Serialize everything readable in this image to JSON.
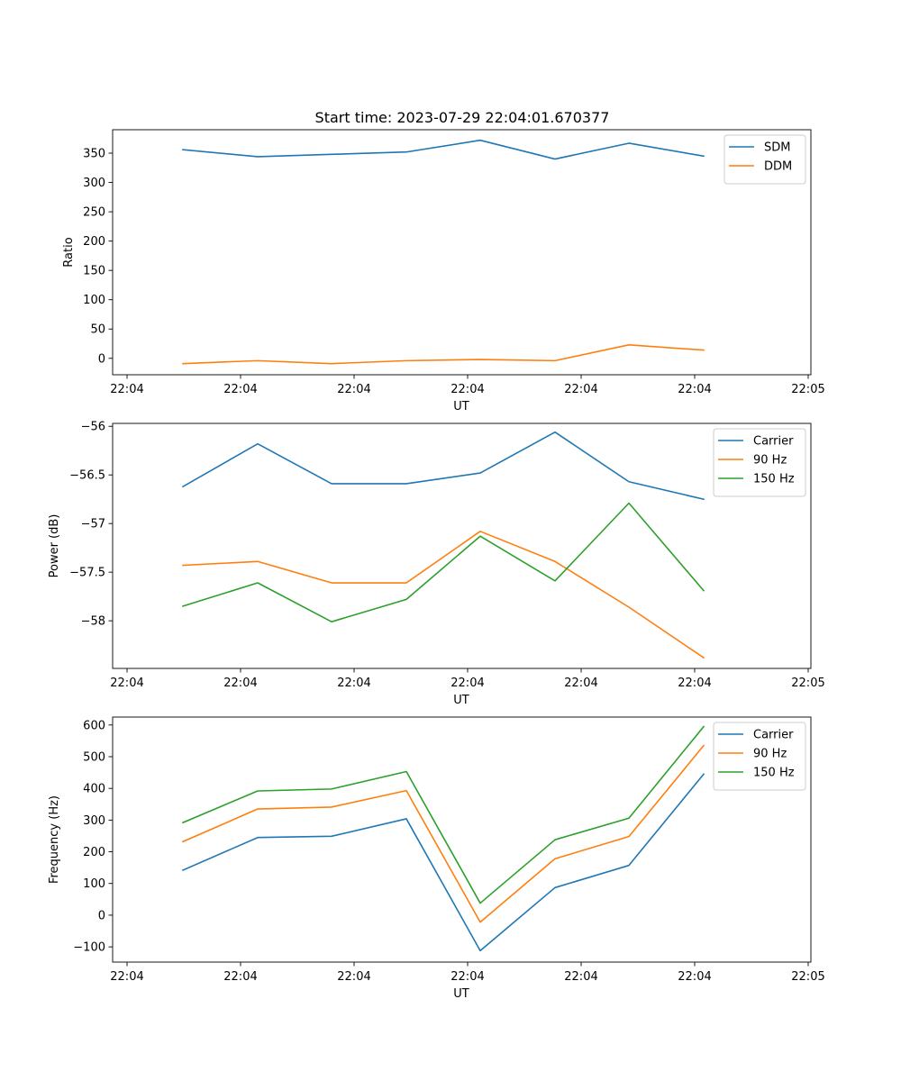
{
  "title": "Start time: 2023-07-29 22:04:01.670377",
  "chart_data": [
    {
      "type": "line",
      "xlabel": "UT",
      "ylabel": "Ratio",
      "xticks": [
        "22:04",
        "22:04",
        "22:04",
        "22:04",
        "22:04",
        "22:04",
        "22:05"
      ],
      "yticks": [
        0,
        50,
        100,
        150,
        200,
        250,
        300,
        350
      ],
      "ylim": [
        -28,
        390
      ],
      "legend": "top-right",
      "series": [
        {
          "name": "SDM",
          "color": "#1f77b4",
          "values": [
            356,
            344,
            348,
            352,
            372,
            340,
            367,
            345
          ]
        },
        {
          "name": "DDM",
          "color": "#ff7f0e",
          "values": [
            -9,
            -4,
            -9,
            -4,
            -2,
            -4,
            23,
            14
          ]
        }
      ]
    },
    {
      "type": "line",
      "xlabel": "UT",
      "ylabel": "Power (dB)",
      "xticks": [
        "22:04",
        "22:04",
        "22:04",
        "22:04",
        "22:04",
        "22:04",
        "22:05"
      ],
      "yticks": [
        -58.0,
        -57.5,
        -57.0,
        -56.5,
        -56.0
      ],
      "ylim": [
        -58.49,
        -55.97
      ],
      "legend": "top-right",
      "series": [
        {
          "name": "Carrier",
          "color": "#1f77b4",
          "values": [
            -56.62,
            -56.18,
            -56.59,
            -56.59,
            -56.48,
            -56.06,
            -56.57,
            -56.75
          ]
        },
        {
          "name": "90 Hz",
          "color": "#ff7f0e",
          "values": [
            -57.43,
            -57.39,
            -57.61,
            -57.61,
            -57.08,
            -57.39,
            -57.86,
            -58.38
          ]
        },
        {
          "name": "150 Hz",
          "color": "#2ca02c",
          "values": [
            -57.85,
            -57.61,
            -58.01,
            -57.78,
            -57.13,
            -57.59,
            -56.79,
            -57.69
          ]
        }
      ]
    },
    {
      "type": "line",
      "xlabel": "UT",
      "ylabel": "Frequency (Hz)",
      "xticks": [
        "22:04",
        "22:04",
        "22:04",
        "22:04",
        "22:04",
        "22:04",
        "22:05"
      ],
      "yticks": [
        -100,
        0,
        100,
        200,
        300,
        400,
        500,
        600
      ],
      "ylim": [
        -148,
        625
      ],
      "legend": "top-right",
      "series": [
        {
          "name": "Carrier",
          "color": "#1f77b4",
          "values": [
            142,
            245,
            249,
            304,
            -112,
            87,
            157,
            445
          ]
        },
        {
          "name": "90 Hz",
          "color": "#ff7f0e",
          "values": [
            232,
            335,
            341,
            393,
            -22,
            178,
            248,
            535
          ]
        },
        {
          "name": "150 Hz",
          "color": "#2ca02c",
          "values": [
            292,
            392,
            398,
            453,
            38,
            238,
            306,
            595
          ]
        }
      ]
    }
  ]
}
